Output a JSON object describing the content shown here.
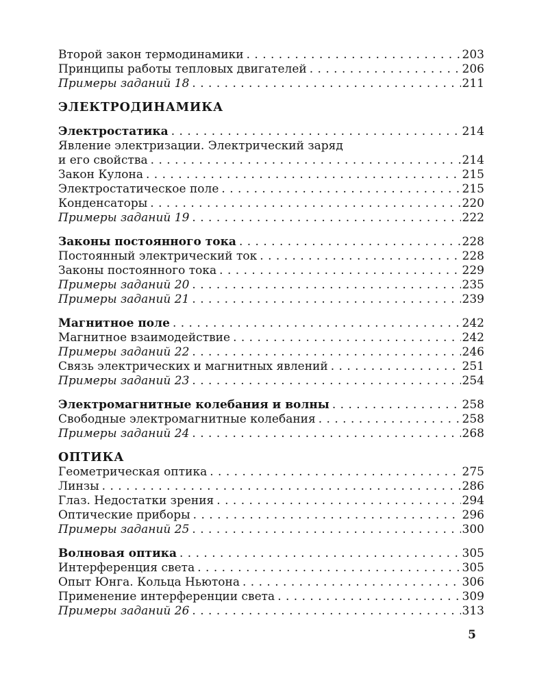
{
  "page": {
    "number": "5",
    "background": "#ffffff",
    "text_color": "#161616"
  },
  "toc": {
    "groups": [
      {
        "type": "entries",
        "items": [
          {
            "label": "Второй закон термодинамики",
            "page": "203",
            "style": "normal"
          },
          {
            "label": "Принципы работы тепловых двигателей",
            "page": "206",
            "style": "normal"
          },
          {
            "label": "Примеры заданий 18",
            "page": "211",
            "style": "italic"
          }
        ]
      },
      {
        "type": "header",
        "label": "ЭЛЕКТРОДИНАМИКА"
      },
      {
        "type": "entries",
        "items": [
          {
            "label": "Электростатика",
            "page": "214",
            "style": "bold"
          },
          {
            "label_pre": "Явление электризации. Электрический заряд",
            "label": "и его свойства",
            "page": "214",
            "style": "normal"
          },
          {
            "label": "Закон Кулона",
            "page": "215",
            "style": "normal"
          },
          {
            "label": "Электростатическое поле",
            "page": "215",
            "style": "normal"
          },
          {
            "label": "Конденсаторы",
            "page": "220",
            "style": "normal"
          },
          {
            "label": "Примеры заданий 19",
            "page": "222",
            "style": "italic"
          }
        ]
      },
      {
        "type": "entries",
        "items": [
          {
            "label": "Законы постоянного тока",
            "page": "228",
            "style": "bold"
          },
          {
            "label": "Постоянный электрический ток",
            "page": "228",
            "style": "normal"
          },
          {
            "label": "Законы постоянного тока",
            "page": "229",
            "style": "normal"
          },
          {
            "label": "Примеры заданий 20",
            "page": "235",
            "style": "italic"
          },
          {
            "label": "Примеры заданий 21",
            "page": "239",
            "style": "italic"
          }
        ]
      },
      {
        "type": "entries",
        "items": [
          {
            "label": "Магнитное поле",
            "page": "242",
            "style": "bold"
          },
          {
            "label": "Магнитное взаимодействие",
            "page": "242",
            "style": "normal"
          },
          {
            "label": "Примеры заданий 22",
            "page": "246",
            "style": "italic"
          },
          {
            "label": "Связь электрических и магнитных явлений",
            "page": "251",
            "style": "normal"
          },
          {
            "label": "Примеры заданий 23",
            "page": "254",
            "style": "italic"
          }
        ]
      },
      {
        "type": "entries",
        "items": [
          {
            "label": "Электромагнитные колебания и волны",
            "page": "258",
            "style": "bold"
          },
          {
            "label": "Свободные электромагнитные колебания",
            "page": "258",
            "style": "normal"
          },
          {
            "label": "Примеры заданий 24",
            "page": "268",
            "style": "italic"
          }
        ]
      },
      {
        "type": "header",
        "label": "ОПТИКА"
      },
      {
        "type": "entries",
        "tight": true,
        "items": [
          {
            "label": "Геометрическая оптика",
            "page": "275",
            "style": "normal"
          },
          {
            "label": "Линзы",
            "page": "286",
            "style": "normal"
          },
          {
            "label": "Глаз. Недостатки зрения",
            "page": "294",
            "style": "normal"
          },
          {
            "label": "Оптические приборы",
            "page": "296",
            "style": "normal"
          },
          {
            "label": "Примеры заданий 25",
            "page": "300",
            "style": "italic"
          }
        ]
      },
      {
        "type": "entries",
        "items": [
          {
            "label": "Волновая оптика",
            "page": "305",
            "style": "bold"
          },
          {
            "label": "Интерференция света",
            "page": "305",
            "style": "normal"
          },
          {
            "label": "Опыт Юнга. Кольца Ньютона",
            "page": "306",
            "style": "normal"
          },
          {
            "label": "Применение интерференции света",
            "page": "309",
            "style": "normal"
          },
          {
            "label": "Примеры заданий 26",
            "page": "313",
            "style": "italic"
          }
        ]
      }
    ]
  }
}
